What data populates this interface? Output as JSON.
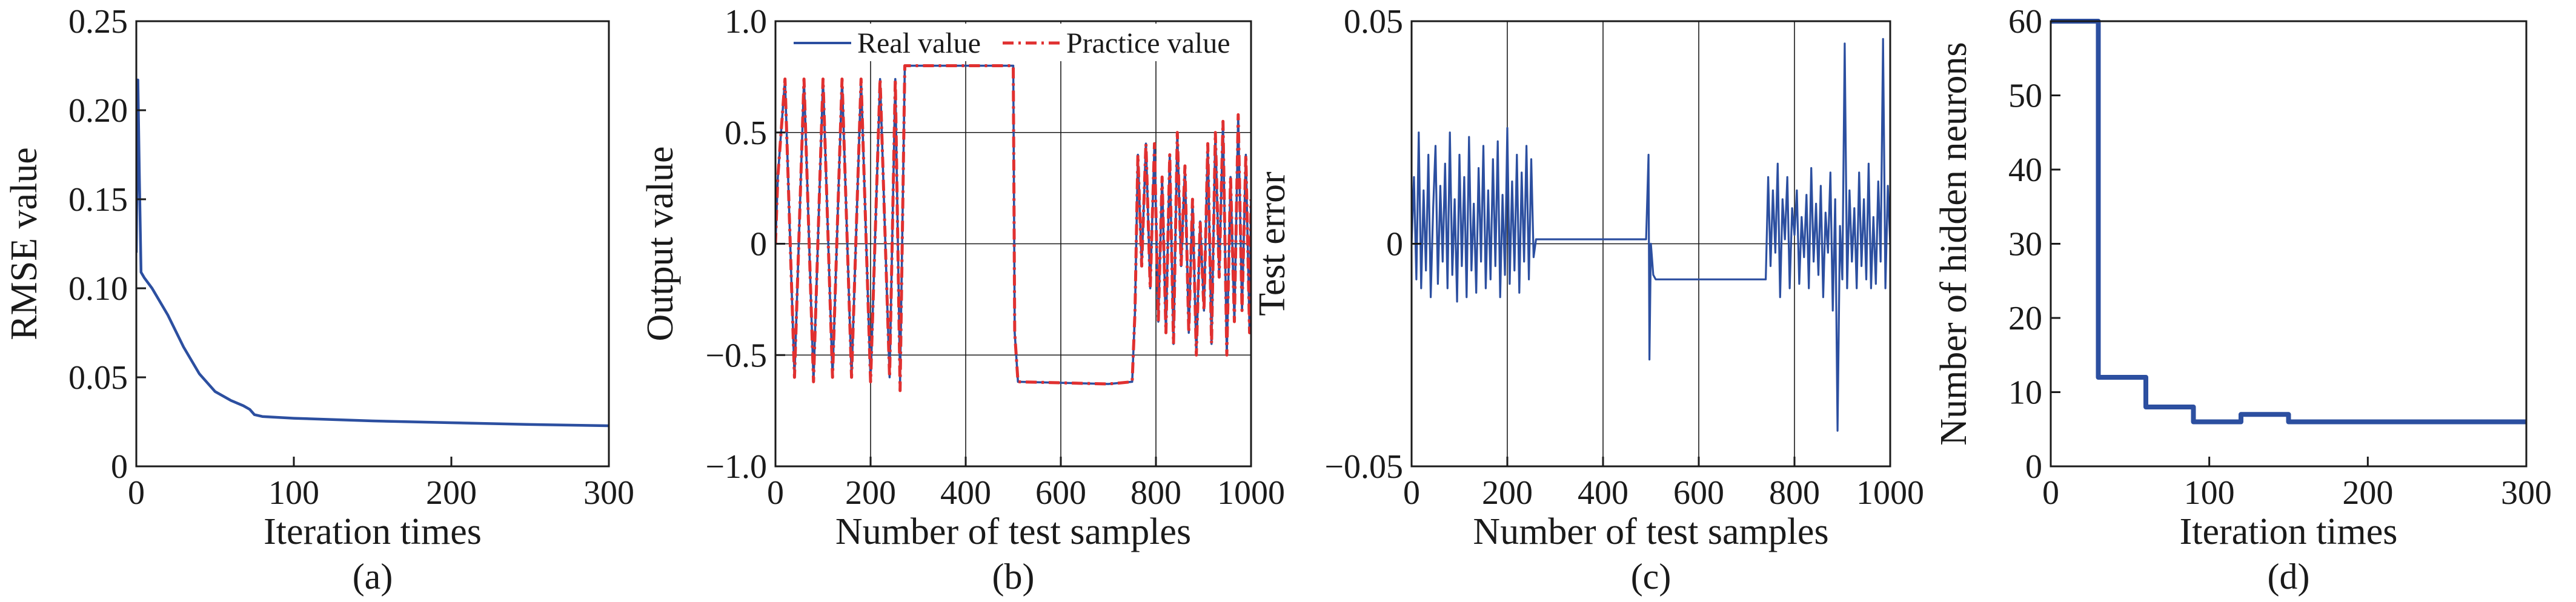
{
  "colors": {
    "real": "#2c4fa0",
    "practice": "#e03030",
    "axis": "#1a1a1a"
  },
  "chart_data": [
    {
      "type": "line",
      "panel_label": "(a)",
      "title": "",
      "xlabel": "Iteration times",
      "ylabel": "RMSE value",
      "xlim": [
        0,
        300
      ],
      "ylim": [
        0,
        0.25
      ],
      "xticks": [
        0,
        100,
        200,
        300
      ],
      "xtick_labels": [
        "0",
        "100",
        "200",
        "300"
      ],
      "yticks": [
        0,
        0.05,
        0.1,
        0.15,
        0.2,
        0.25
      ],
      "ytick_labels": [
        "0",
        "0.05",
        "0.10",
        "0.15",
        "0.20",
        "0.25"
      ],
      "grid": false,
      "series": [
        {
          "color": "#2c4fa0",
          "x": [
            0,
            1,
            2,
            3,
            5,
            10,
            20,
            30,
            40,
            50,
            60,
            68,
            72,
            75,
            80,
            100,
            150,
            200,
            250,
            300
          ],
          "y": [
            0.12,
            0.217,
            0.16,
            0.109,
            0.106,
            0.1,
            0.085,
            0.067,
            0.052,
            0.042,
            0.037,
            0.034,
            0.032,
            0.029,
            0.028,
            0.027,
            0.0255,
            0.0245,
            0.0235,
            0.0228
          ]
        }
      ]
    },
    {
      "type": "line",
      "panel_label": "(b)",
      "title": "",
      "xlabel": "Number of test samples",
      "ylabel": "Output value",
      "xlim": [
        0,
        1000
      ],
      "ylim": [
        -1,
        1
      ],
      "xticks": [
        0,
        200,
        400,
        600,
        800,
        1000
      ],
      "xtick_labels": [
        "0",
        "200",
        "400",
        "600",
        "800",
        "1000"
      ],
      "yticks": [
        -1,
        -0.5,
        0,
        0.5,
        1
      ],
      "ytick_labels": [
        "−1.0",
        "−0.5",
        "0",
        "0.5",
        "1.0"
      ],
      "grid": true,
      "legend": {
        "position": "top",
        "entries": [
          "Real value",
          "Practice value"
        ]
      },
      "series": [
        {
          "name": "Real value",
          "color": "#2c4fa0",
          "x": [
            0,
            5,
            20,
            40,
            60,
            80,
            100,
            120,
            140,
            160,
            180,
            200,
            220,
            240,
            252,
            262,
            272,
            498,
            500,
            503,
            510,
            700,
            750,
            756,
            762,
            770,
            779,
            788,
            797,
            805,
            813,
            821,
            829,
            837,
            845,
            853,
            861,
            869,
            877,
            885,
            893,
            901,
            909,
            917,
            925,
            933,
            941,
            949,
            957,
            965,
            973,
            981,
            989,
            997,
            1000
          ],
          "y": [
            0.0,
            0.3,
            0.74,
            -0.6,
            0.74,
            -0.62,
            0.74,
            -0.6,
            0.74,
            -0.6,
            0.74,
            -0.62,
            0.74,
            -0.6,
            0.74,
            -0.62,
            0.8,
            0.8,
            0.8,
            -0.4,
            -0.62,
            -0.63,
            -0.62,
            -0.3,
            0.4,
            -0.1,
            0.45,
            -0.2,
            0.45,
            -0.35,
            0.3,
            -0.4,
            0.4,
            -0.45,
            0.5,
            -0.1,
            0.35,
            -0.4,
            0.2,
            -0.5,
            0.1,
            -0.3,
            0.45,
            -0.45,
            0.5,
            -0.15,
            0.55,
            -0.5,
            0.3,
            -0.35,
            0.58,
            -0.3,
            0.4,
            -0.4,
            0.2
          ]
        },
        {
          "name": "Practice value",
          "color": "#e03030",
          "x": [
            0,
            5,
            20,
            40,
            60,
            80,
            100,
            120,
            140,
            160,
            180,
            200,
            220,
            240,
            252,
            262,
            272,
            498,
            500,
            503,
            510,
            700,
            750,
            756,
            762,
            770,
            779,
            788,
            797,
            805,
            813,
            821,
            829,
            837,
            845,
            853,
            861,
            869,
            877,
            885,
            893,
            901,
            909,
            917,
            925,
            933,
            941,
            949,
            957,
            965,
            973,
            981,
            989,
            997,
            1000
          ],
          "y": [
            0.0,
            0.3,
            0.74,
            -0.6,
            0.74,
            -0.62,
            0.74,
            -0.6,
            0.74,
            -0.6,
            0.74,
            -0.62,
            0.74,
            -0.6,
            0.74,
            -0.66,
            0.8,
            0.8,
            0.8,
            -0.4,
            -0.62,
            -0.63,
            -0.62,
            -0.3,
            0.4,
            -0.1,
            0.45,
            -0.2,
            0.45,
            -0.35,
            0.3,
            -0.4,
            0.4,
            -0.45,
            0.5,
            -0.1,
            0.35,
            -0.4,
            0.2,
            -0.5,
            0.1,
            -0.3,
            0.45,
            -0.45,
            0.5,
            -0.15,
            0.55,
            -0.5,
            0.3,
            -0.35,
            0.58,
            -0.3,
            0.4,
            -0.4,
            0.2
          ]
        }
      ]
    },
    {
      "type": "line",
      "panel_label": "(c)",
      "title": "",
      "xlabel": "Number of test samples",
      "ylabel": "Test error",
      "xlim": [
        0,
        1000
      ],
      "ylim": [
        -0.05,
        0.05
      ],
      "xticks": [
        0,
        200,
        400,
        600,
        800,
        1000
      ],
      "xtick_labels": [
        "0",
        "200",
        "400",
        "600",
        "800",
        "1000"
      ],
      "yticks": [
        -0.05,
        0,
        0.05
      ],
      "ytick_labels": [
        "−0.05",
        "0",
        "0.05"
      ],
      "grid": true,
      "series": [
        {
          "color": "#2c4fa0",
          "x": [
            0,
            5,
            10,
            15,
            20,
            25,
            30,
            35,
            40,
            45,
            50,
            55,
            60,
            65,
            70,
            75,
            80,
            85,
            90,
            95,
            100,
            105,
            110,
            115,
            120,
            125,
            130,
            135,
            140,
            145,
            150,
            155,
            160,
            165,
            170,
            175,
            180,
            185,
            190,
            195,
            200,
            205,
            210,
            215,
            220,
            225,
            230,
            235,
            240,
            245,
            250,
            255,
            260,
            490,
            495,
            497,
            500,
            505,
            510,
            520,
            740,
            745,
            750,
            755,
            760,
            765,
            770,
            775,
            780,
            785,
            790,
            795,
            800,
            805,
            810,
            815,
            820,
            825,
            830,
            835,
            840,
            845,
            850,
            855,
            860,
            865,
            870,
            875,
            880,
            885,
            890,
            895,
            900,
            905,
            910,
            915,
            920,
            925,
            930,
            935,
            940,
            945,
            950,
            955,
            960,
            965,
            970,
            975,
            980,
            985,
            990,
            995,
            1000
          ],
          "y": [
            0.0,
            0.015,
            -0.008,
            0.025,
            -0.01,
            0.012,
            -0.006,
            0.02,
            -0.012,
            0.008,
            0.022,
            -0.009,
            0.013,
            -0.004,
            0.018,
            -0.01,
            0.025,
            -0.007,
            0.01,
            -0.013,
            0.02,
            -0.005,
            0.015,
            -0.012,
            0.024,
            -0.006,
            0.009,
            -0.011,
            0.017,
            -0.004,
            0.022,
            -0.01,
            0.012,
            -0.008,
            0.019,
            -0.005,
            0.023,
            -0.012,
            0.011,
            -0.007,
            0.026,
            -0.009,
            0.014,
            -0.006,
            0.02,
            -0.011,
            0.016,
            -0.004,
            0.022,
            -0.008,
            0.019,
            -0.003,
            0.001,
            0.001,
            0.02,
            -0.026,
            0.0,
            -0.007,
            -0.008,
            -0.008,
            -0.008,
            0.015,
            -0.005,
            0.012,
            -0.002,
            0.018,
            -0.012,
            0.01,
            0.001,
            0.015,
            -0.01,
            0.008,
            0.002,
            0.012,
            -0.009,
            0.006,
            -0.003,
            0.011,
            -0.01,
            0.017,
            -0.004,
            0.009,
            -0.007,
            0.013,
            -0.012,
            0.007,
            -0.002,
            0.016,
            -0.015,
            0.01,
            -0.042,
            0.004,
            -0.008,
            0.045,
            -0.01,
            0.012,
            -0.004,
            0.008,
            -0.01,
            0.016,
            -0.005,
            0.01,
            -0.008,
            0.018,
            -0.01,
            0.006,
            -0.009,
            0.014,
            -0.004,
            0.046,
            -0.01,
            0.013,
            0.0
          ]
        }
      ]
    },
    {
      "type": "line",
      "panel_label": "(d)",
      "title": "",
      "xlabel": "Iteration times",
      "ylabel": "Number of hidden neurons",
      "xlim": [
        0,
        300
      ],
      "ylim": [
        0,
        60
      ],
      "xticks": [
        0,
        100,
        200,
        300
      ],
      "xtick_labels": [
        "0",
        "100",
        "200",
        "300"
      ],
      "yticks": [
        0,
        10,
        20,
        30,
        40,
        50,
        60
      ],
      "ytick_labels": [
        "0",
        "10",
        "20",
        "30",
        "40",
        "50",
        "60"
      ],
      "grid": false,
      "series": [
        {
          "color": "#2c4fa0",
          "x": [
            0,
            30,
            30,
            60,
            60,
            90,
            90,
            120,
            120,
            150,
            150,
            300
          ],
          "y": [
            60,
            60,
            12,
            12,
            8,
            8,
            6,
            6,
            7,
            7,
            6,
            6
          ]
        }
      ]
    }
  ]
}
